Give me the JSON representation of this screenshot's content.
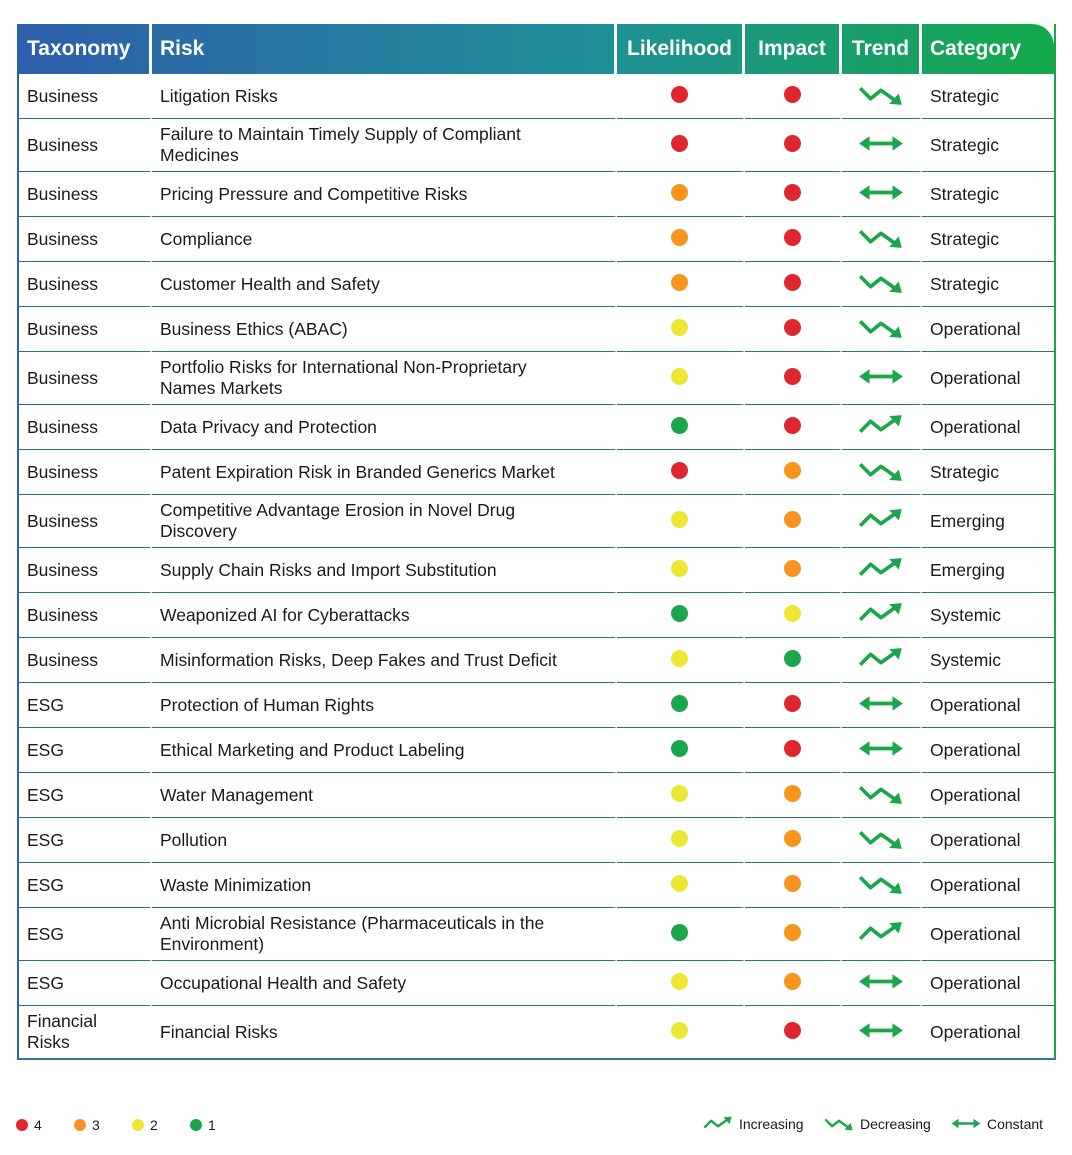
{
  "table": {
    "columns": [
      "Taxonomy",
      "Risk",
      "Likelihood",
      "Impact",
      "Trend",
      "Category"
    ],
    "rows": [
      {
        "taxonomy": "Business",
        "risk": "Litigation Risks",
        "likelihood": 4,
        "impact": 4,
        "trend": "Decreasing",
        "category": "Strategic"
      },
      {
        "taxonomy": "Business",
        "risk": "Failure to Maintain Timely Supply of Compliant Medicines",
        "likelihood": 4,
        "impact": 4,
        "trend": "Constant",
        "category": "Strategic"
      },
      {
        "taxonomy": "Business",
        "risk": "Pricing Pressure and Competitive Risks",
        "likelihood": 3,
        "impact": 4,
        "trend": "Constant",
        "category": "Strategic"
      },
      {
        "taxonomy": "Business",
        "risk": "Compliance",
        "likelihood": 3,
        "impact": 4,
        "trend": "Decreasing",
        "category": "Strategic"
      },
      {
        "taxonomy": "Business",
        "risk": "Customer Health and Safety",
        "likelihood": 3,
        "impact": 4,
        "trend": "Decreasing",
        "category": "Strategic"
      },
      {
        "taxonomy": "Business",
        "risk": "Business Ethics (ABAC)",
        "likelihood": 2,
        "impact": 4,
        "trend": "Decreasing",
        "category": "Operational"
      },
      {
        "taxonomy": "Business",
        "risk": "Portfolio Risks for International Non-Proprietary Names Markets",
        "likelihood": 2,
        "impact": 4,
        "trend": "Constant",
        "category": "Operational"
      },
      {
        "taxonomy": "Business",
        "risk": "Data Privacy and Protection",
        "likelihood": 1,
        "impact": 4,
        "trend": "Increasing",
        "category": "Operational"
      },
      {
        "taxonomy": "Business",
        "risk": "Patent Expiration Risk in Branded Generics Market",
        "likelihood": 4,
        "impact": 3,
        "trend": "Decreasing",
        "category": "Strategic"
      },
      {
        "taxonomy": "Business",
        "risk": "Competitive Advantage Erosion in Novel Drug Discovery",
        "likelihood": 2,
        "impact": 3,
        "trend": "Increasing",
        "category": "Emerging"
      },
      {
        "taxonomy": "Business",
        "risk": "Supply Chain Risks and Import Substitution",
        "likelihood": 2,
        "impact": 3,
        "trend": "Increasing",
        "category": "Emerging"
      },
      {
        "taxonomy": "Business",
        "risk": "Weaponized AI for Cyberattacks",
        "likelihood": 1,
        "impact": 2,
        "trend": "Increasing",
        "category": "Systemic"
      },
      {
        "taxonomy": "Business",
        "risk": "Misinformation Risks, Deep Fakes and Trust Deficit",
        "likelihood": 2,
        "impact": 1,
        "trend": "Increasing",
        "category": "Systemic"
      },
      {
        "taxonomy": "ESG",
        "risk": "Protection of Human Rights",
        "likelihood": 1,
        "impact": 4,
        "trend": "Constant",
        "category": "Operational"
      },
      {
        "taxonomy": "ESG",
        "risk": "Ethical Marketing and Product Labeling",
        "likelihood": 1,
        "impact": 4,
        "trend": "Constant",
        "category": "Operational"
      },
      {
        "taxonomy": "ESG",
        "risk": "Water Management",
        "likelihood": 2,
        "impact": 3,
        "trend": "Decreasing",
        "category": "Operational"
      },
      {
        "taxonomy": "ESG",
        "risk": "Pollution",
        "likelihood": 2,
        "impact": 3,
        "trend": "Decreasing",
        "category": "Operational"
      },
      {
        "taxonomy": "ESG",
        "risk": "Waste Minimization",
        "likelihood": 2,
        "impact": 3,
        "trend": "Decreasing",
        "category": "Operational"
      },
      {
        "taxonomy": "ESG",
        "risk": "Anti Microbial Resistance (Pharmaceuticals in the Environment)",
        "likelihood": 1,
        "impact": 3,
        "trend": "Increasing",
        "category": "Operational"
      },
      {
        "taxonomy": "ESG",
        "risk": "Occupational Health and Safety",
        "likelihood": 2,
        "impact": 3,
        "trend": "Constant",
        "category": "Operational"
      },
      {
        "taxonomy": "Financial Risks",
        "risk": "Financial Risks",
        "likelihood": 2,
        "impact": 4,
        "trend": "Constant",
        "category": "Operational"
      }
    ]
  },
  "legend": {
    "levels": [
      {
        "value": 4,
        "color": "#e0262d"
      },
      {
        "value": 3,
        "color": "#f7941d"
      },
      {
        "value": 2,
        "color": "#ede734"
      },
      {
        "value": 1,
        "color": "#1aa64a"
      }
    ],
    "trends": [
      "Increasing",
      "Decreasing",
      "Constant"
    ]
  }
}
